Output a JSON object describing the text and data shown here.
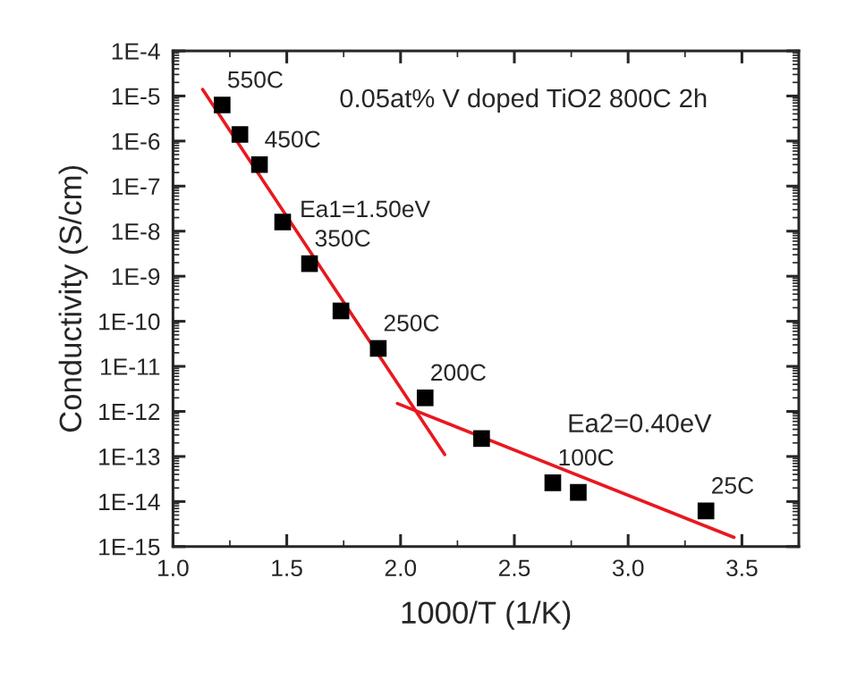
{
  "chart_data": {
    "type": "scatter",
    "xlabel": "1000/T (1/K)",
    "ylabel": "Conductivity (S/cm)",
    "log": "y",
    "grid": false,
    "legend": false,
    "xlim": [
      1.0,
      3.75
    ],
    "xticks": [
      {
        "value": 1.0,
        "label": "1.0"
      },
      {
        "value": 1.5,
        "label": "1.5"
      },
      {
        "value": 2.0,
        "label": "2.0"
      },
      {
        "value": 2.5,
        "label": "2.5"
      },
      {
        "value": 3.0,
        "label": "3.0"
      },
      {
        "value": 3.5,
        "label": "3.5"
      }
    ],
    "ylim": [
      1e-15,
      0.0001
    ],
    "yticks": [
      {
        "value": 1e-15,
        "label": "1E-15"
      },
      {
        "value": 1e-14,
        "label": "1E-14"
      },
      {
        "value": 1e-13,
        "label": "1E-13"
      },
      {
        "value": 1e-12,
        "label": "1E-12"
      },
      {
        "value": 1e-11,
        "label": "1E-11"
      },
      {
        "value": 1e-10,
        "label": "1E-10"
      },
      {
        "value": 1e-09,
        "label": "1E-9"
      },
      {
        "value": 1e-08,
        "label": "1E-8"
      },
      {
        "value": 1e-07,
        "label": "1E-7"
      },
      {
        "value": 1e-06,
        "label": "1E-6"
      },
      {
        "value": 1e-05,
        "label": "1E-5"
      },
      {
        "value": 0.0001,
        "label": "1E-4"
      }
    ],
    "series": [
      {
        "marker": "square",
        "color": "#000000",
        "x": [
          1.216,
          1.294,
          1.38,
          1.482,
          1.6,
          1.738,
          1.902,
          2.108,
          2.356,
          2.669,
          2.781,
          3.342
        ],
        "values": [
          6.3e-06,
          1.4e-06,
          3e-07,
          1.6e-08,
          1.9e-09,
          1.7e-10,
          2.5e-11,
          2e-12,
          2.5e-13,
          2.6e-14,
          1.6e-14,
          6.2e-15
        ]
      },
      {
        "type": "line",
        "marker": "none",
        "line_style": "solid",
        "color": "#e8191f",
        "x": [
          1.13,
          2.194
        ],
        "values": [
          1.4e-05,
          1.1e-13
        ]
      },
      {
        "type": "line",
        "marker": "none",
        "line_style": "solid",
        "color": "#e8191f",
        "x": [
          1.986,
          3.465
        ],
        "values": [
          1.5e-12,
          1.6e-15
        ]
      }
    ],
    "annotations": [
      "0.05at% V doped TiO2 800C 2h",
      {
        "text": "550C",
        "x": 1.216,
        "y": 6.3e-06
      },
      {
        "text": "450C",
        "x": 1.38,
        "y": 3e-07
      },
      {
        "text": "Ea1=1.50eV",
        "x": 1.535,
        "y": 8.5e-09
      },
      {
        "text": "350C",
        "x": 1.6,
        "y": 1.9e-09
      },
      {
        "text": "250C",
        "x": 1.902,
        "y": 2.5e-11
      },
      {
        "text": "200C",
        "x": 2.108,
        "y": 2e-12
      },
      "Ea2=0.40eV",
      {
        "text": "100C",
        "x": 2.669,
        "y": 2.6e-14
      },
      {
        "text": "25C",
        "x": 3.342,
        "y": 6.2e-15
      }
    ]
  }
}
